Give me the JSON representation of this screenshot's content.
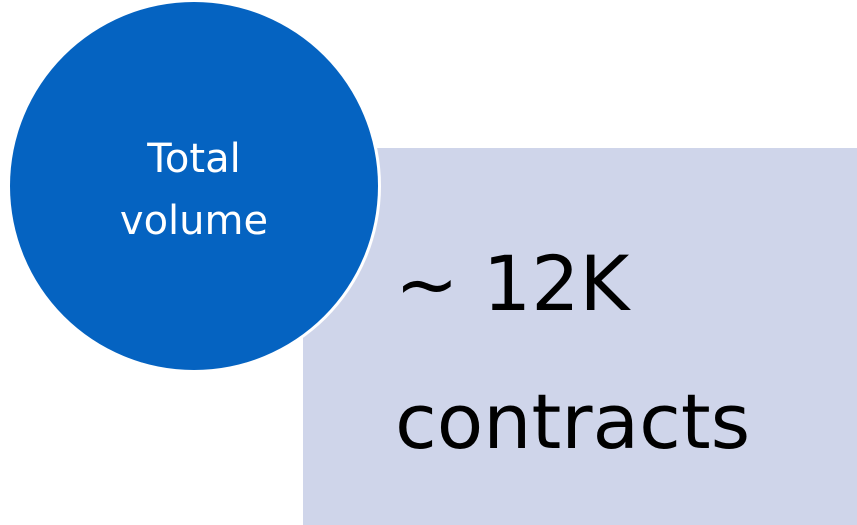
{
  "circle": {
    "lines": [
      "Total",
      "volume"
    ]
  },
  "box": {
    "lines": [
      "~ 12K",
      "contracts"
    ]
  }
}
